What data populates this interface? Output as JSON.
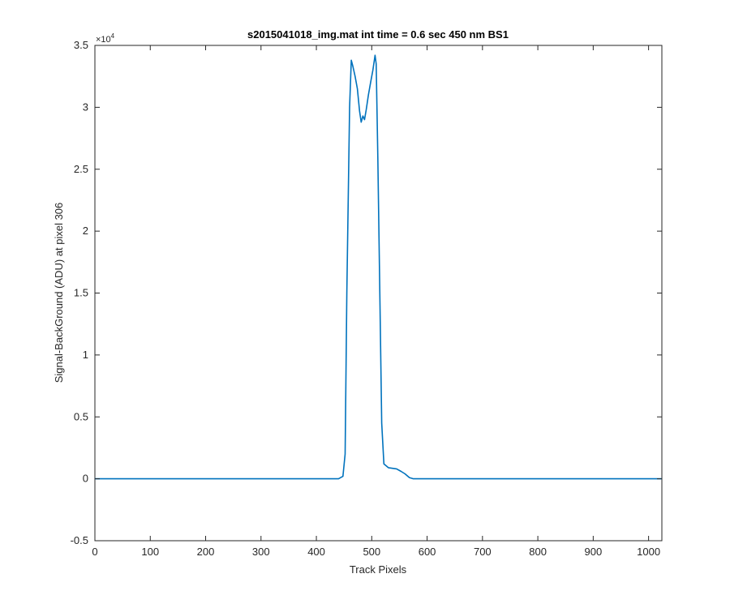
{
  "chart_data": {
    "type": "line",
    "title": "s2015041018_img.mat int time = 0.6 sec  450 nm BS1",
    "xlabel": "Track Pixels",
    "ylabel": "Signal-BackGround (ADU) at pixel 306",
    "y_exponent_label": "×10",
    "y_exponent_power": "4",
    "xlim": [
      0,
      1024
    ],
    "ylim": [
      -0.5,
      3.5
    ],
    "y_scale_multiplier": 10000,
    "x_ticks": [
      0,
      100,
      200,
      300,
      400,
      500,
      600,
      700,
      800,
      900,
      1000
    ],
    "x_tick_labels": [
      "0",
      "100",
      "200",
      "300",
      "400",
      "500",
      "600",
      "700",
      "800",
      "900",
      "1000"
    ],
    "y_ticks": [
      -0.5,
      0,
      0.5,
      1,
      1.5,
      2,
      2.5,
      3,
      3.5
    ],
    "y_tick_labels": [
      "-0.5",
      "0",
      "0.5",
      "1",
      "1.5",
      "2",
      "2.5",
      "3",
      "3.5"
    ],
    "grid": false,
    "series_color": "#0072BD",
    "series": [
      {
        "values_note_units": "y in units of 10^4 ADU",
        "x": [
          0,
          100,
          200,
          300,
          400,
          440,
          448,
          452,
          455,
          460,
          463,
          466,
          470,
          474,
          478,
          481,
          484,
          487,
          490,
          494,
          498,
          502,
          506,
          508,
          511,
          515,
          518,
          522,
          530,
          545,
          553,
          560,
          568,
          575,
          590,
          700,
          800,
          900,
          1024
        ],
        "y": [
          0.0,
          0.0,
          0.0,
          0.0,
          0.0,
          0.0,
          0.02,
          0.2,
          1.5,
          3.0,
          3.38,
          3.33,
          3.25,
          3.15,
          2.97,
          2.88,
          2.93,
          2.9,
          2.98,
          3.1,
          3.2,
          3.3,
          3.42,
          3.35,
          2.6,
          1.4,
          0.45,
          0.12,
          0.09,
          0.08,
          0.06,
          0.04,
          0.01,
          0.0,
          0.0,
          0.0,
          0.0,
          0.0,
          0.0
        ]
      }
    ]
  }
}
